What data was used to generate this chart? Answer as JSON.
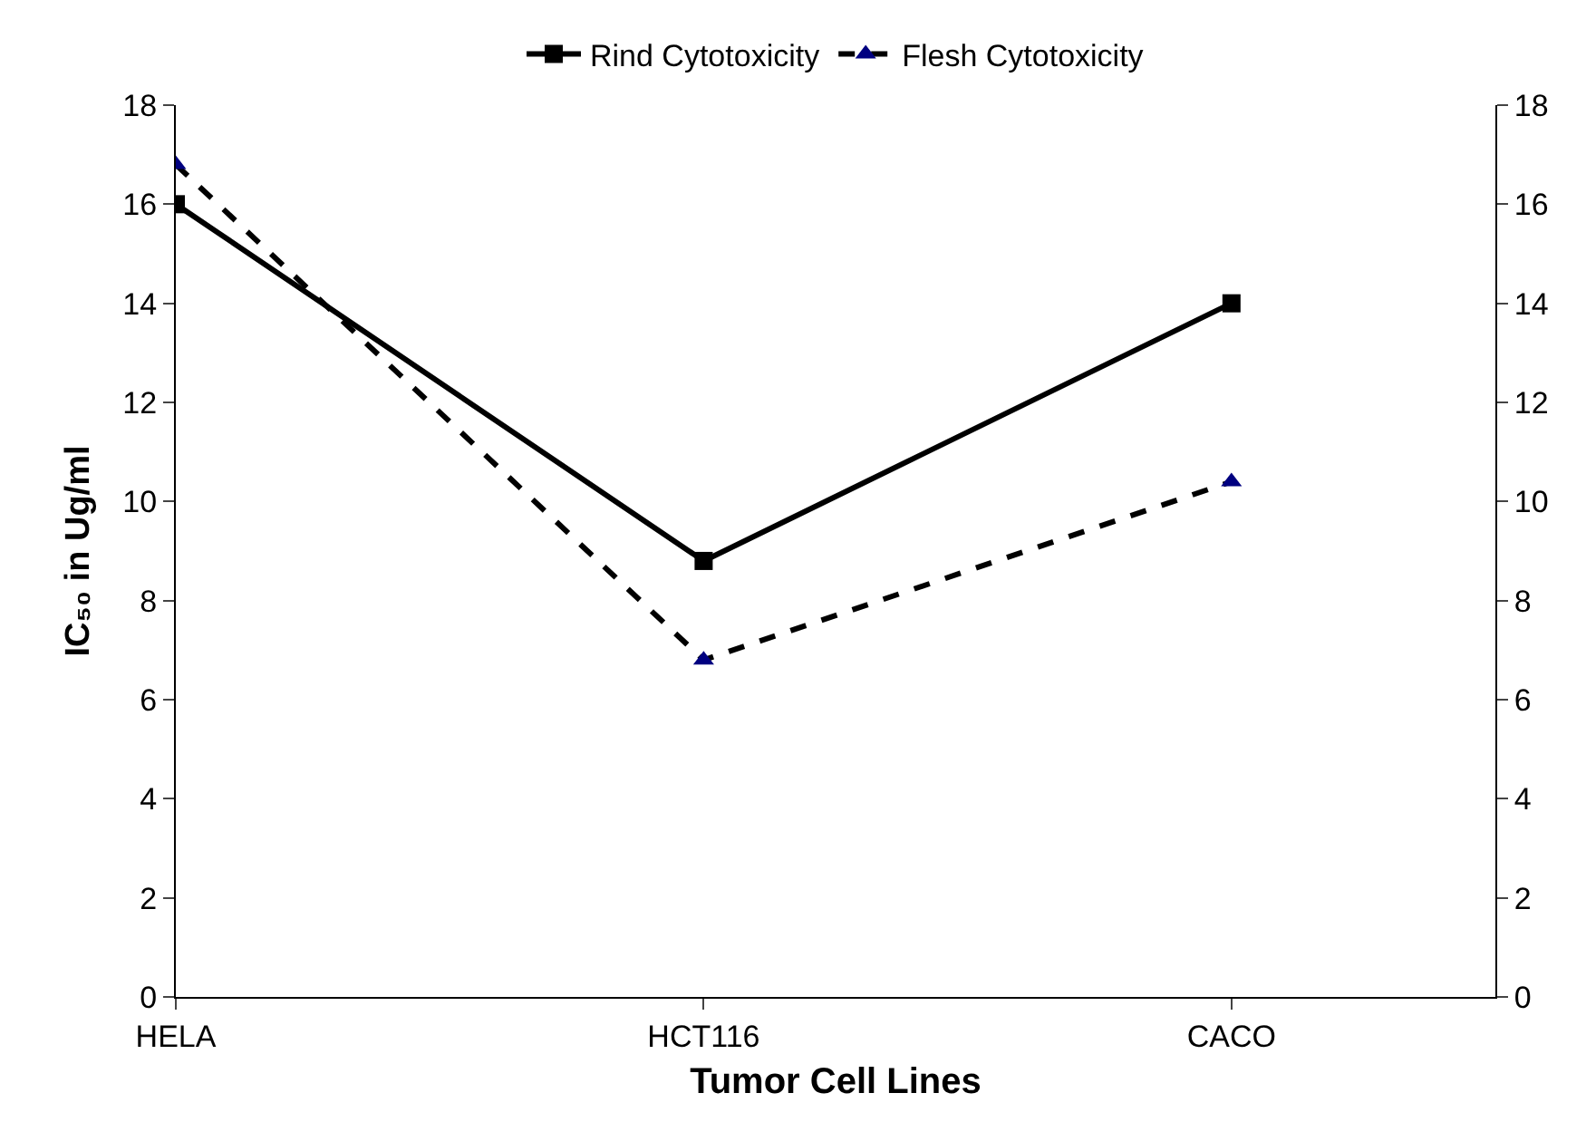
{
  "chart_data": {
    "type": "line",
    "xlabel": "Tumor Cell Lines",
    "ylabel": "IC₅₀ in Ug/ml",
    "categories": [
      "HELA",
      "HCT116",
      "CACO"
    ],
    "series": [
      {
        "name": "Rind Cytotoxicity",
        "color": "#000000",
        "values": [
          16,
          8.8,
          14
        ],
        "marker": "square",
        "line_style": "solid"
      },
      {
        "name": "Flesh Cytotoxicity",
        "color": "#000080",
        "values": [
          16.8,
          6.8,
          10.4
        ],
        "marker": "triangle",
        "line_style": "dashed"
      }
    ],
    "ylim": [
      0,
      18
    ],
    "yticks": [
      0,
      2,
      4,
      6,
      8,
      10,
      12,
      14,
      16,
      18
    ],
    "y2lim": [
      0,
      18
    ],
    "y2ticks": [
      0,
      2,
      4,
      6,
      8,
      10,
      12,
      14,
      16,
      18
    ],
    "grid": false,
    "legend": "top"
  }
}
